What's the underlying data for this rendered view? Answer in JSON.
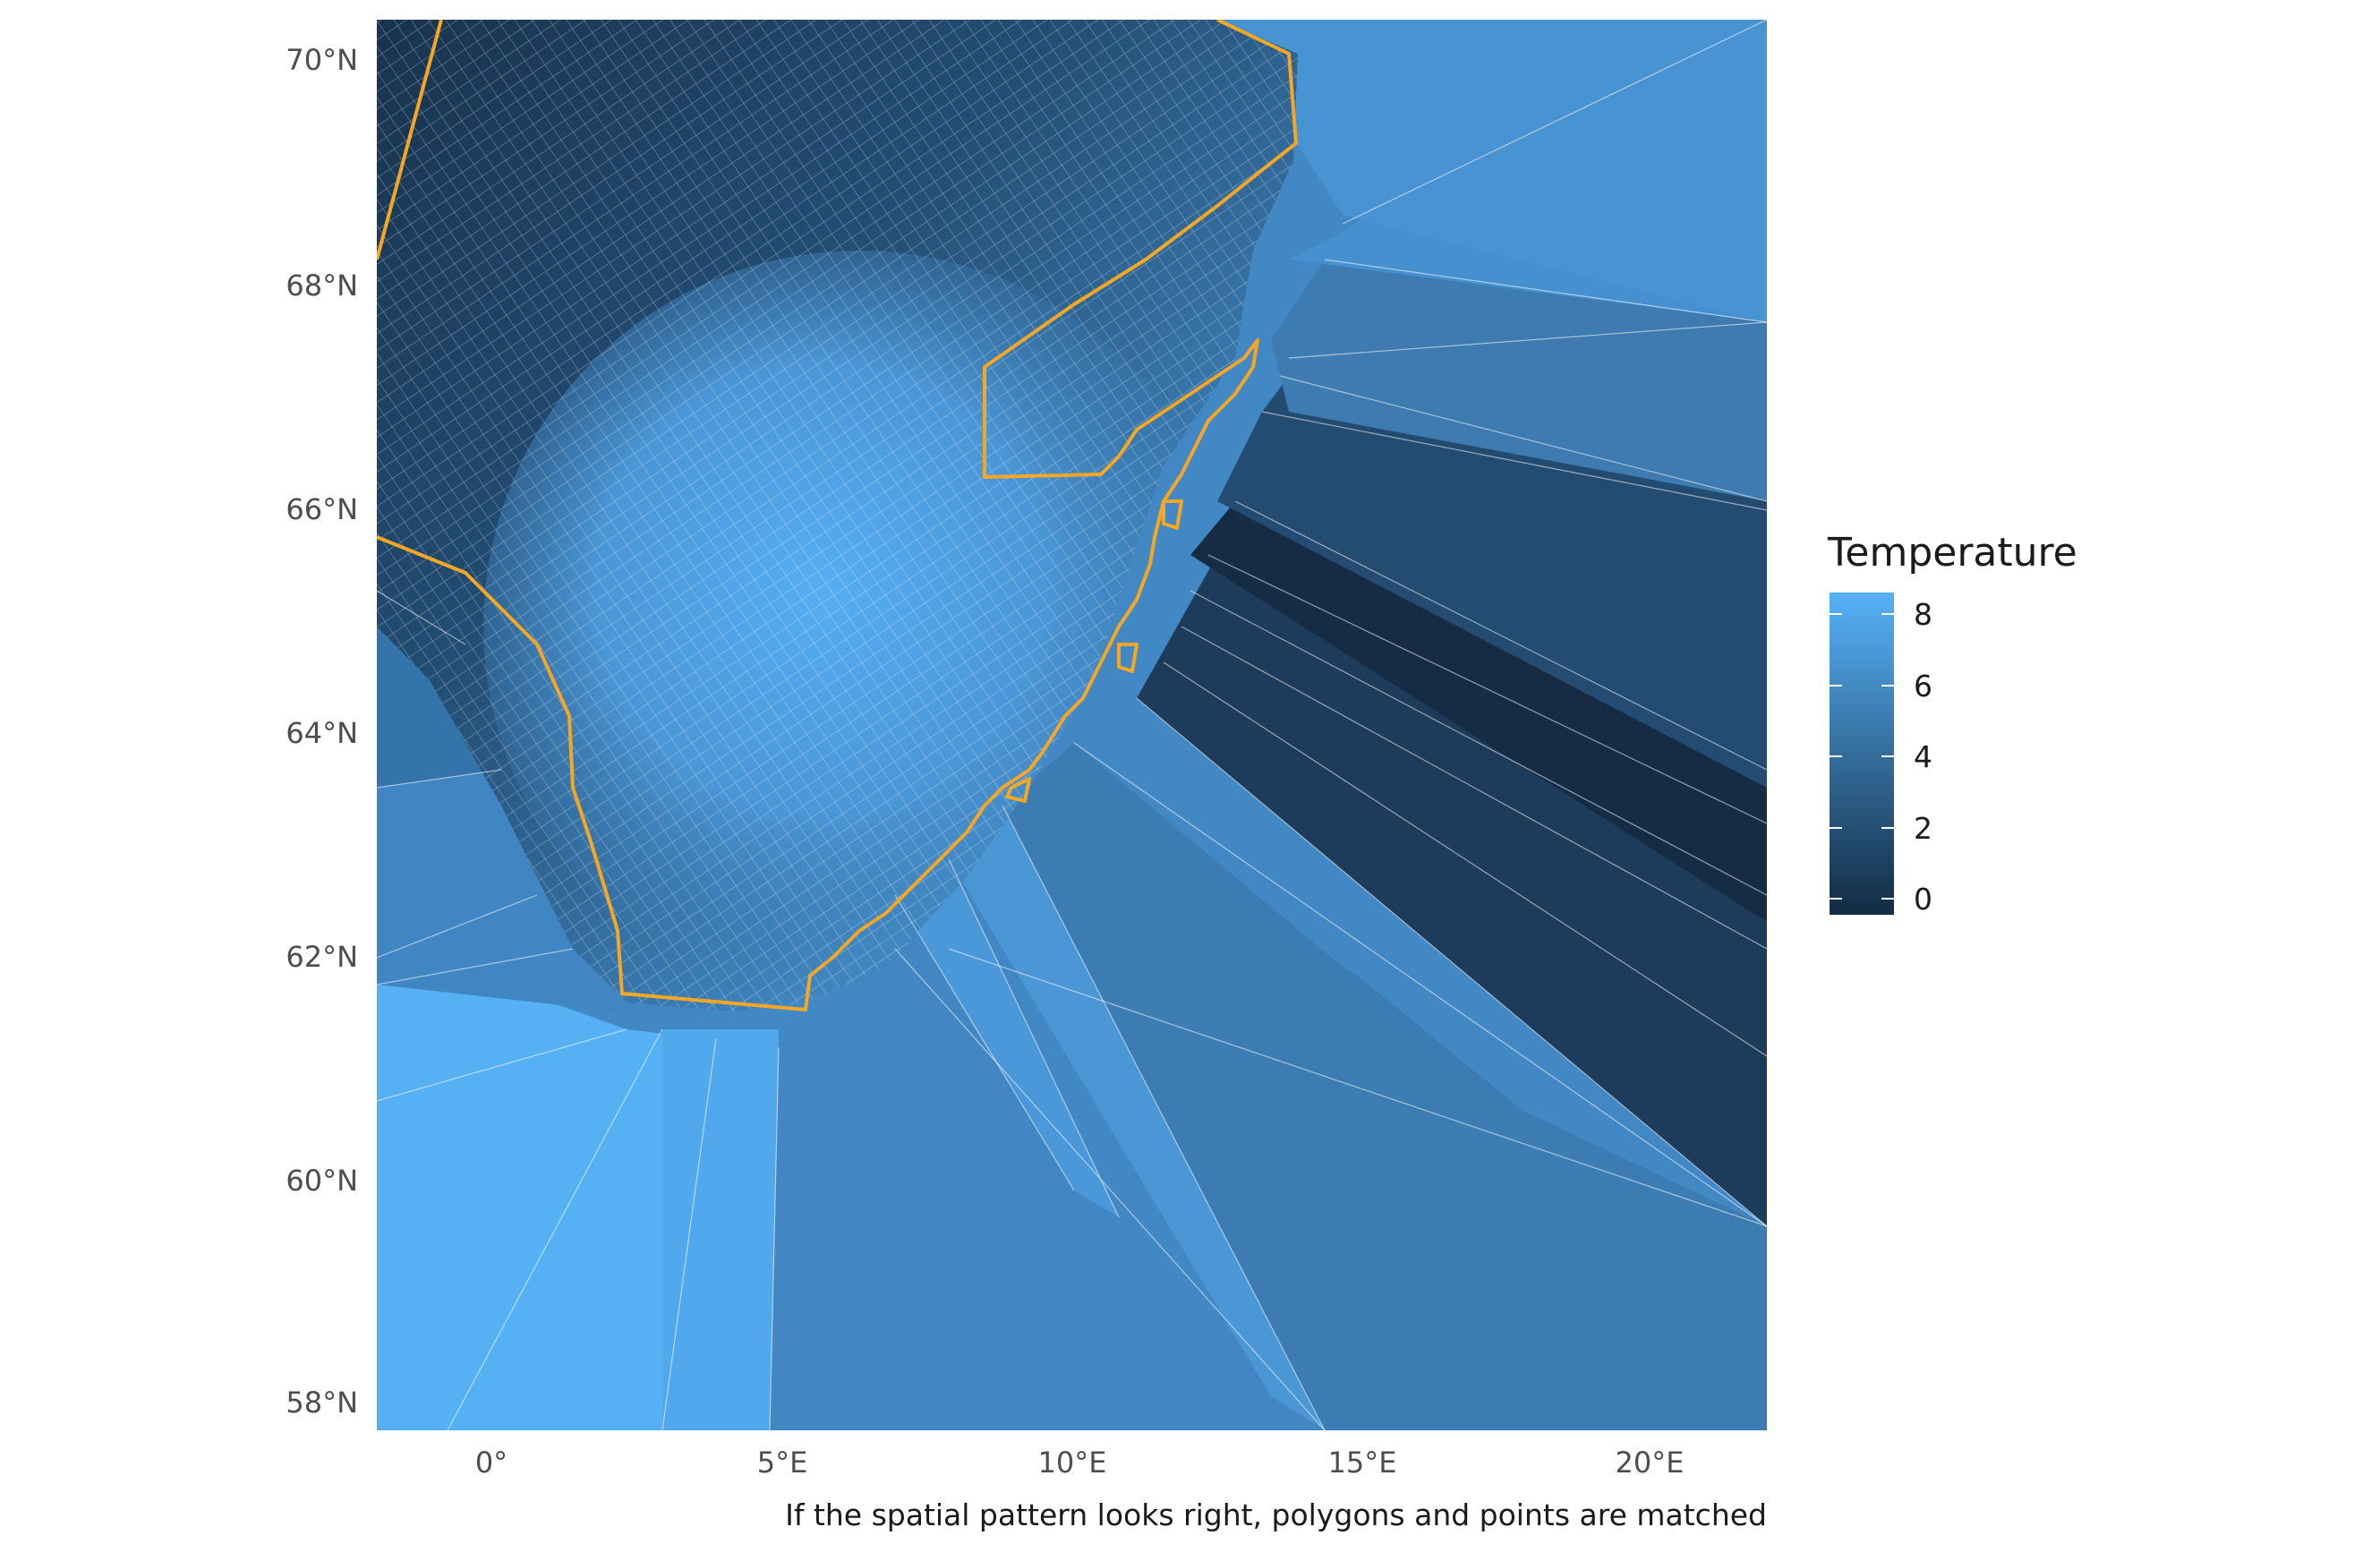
{
  "map": {
    "caption": "If the spatial pattern looks right, polygons and points are matched",
    "lat_labels": [
      "70°N",
      "68°N",
      "66°N",
      "64°N",
      "62°N",
      "60°N",
      "58°N"
    ],
    "lon_labels": [
      "0°",
      "5°E",
      "10°E",
      "15°E",
      "20°E"
    ],
    "extent": {
      "lon_min": -2,
      "lon_max": 22,
      "lat_min": 57.8,
      "lat_max": 70.3
    },
    "grid_cell_lines": "white",
    "outline_color": "#F5A623",
    "legend": {
      "title": "Temperature",
      "ticks": [
        "8",
        "6",
        "4",
        "2",
        "0"
      ],
      "range": [
        -0.3,
        8.6
      ],
      "color_low": "#132B43",
      "color_high": "#56B1F7"
    },
    "layers": [
      "voronoi temperature polygons",
      "regular grid cells",
      "region outline"
    ]
  }
}
